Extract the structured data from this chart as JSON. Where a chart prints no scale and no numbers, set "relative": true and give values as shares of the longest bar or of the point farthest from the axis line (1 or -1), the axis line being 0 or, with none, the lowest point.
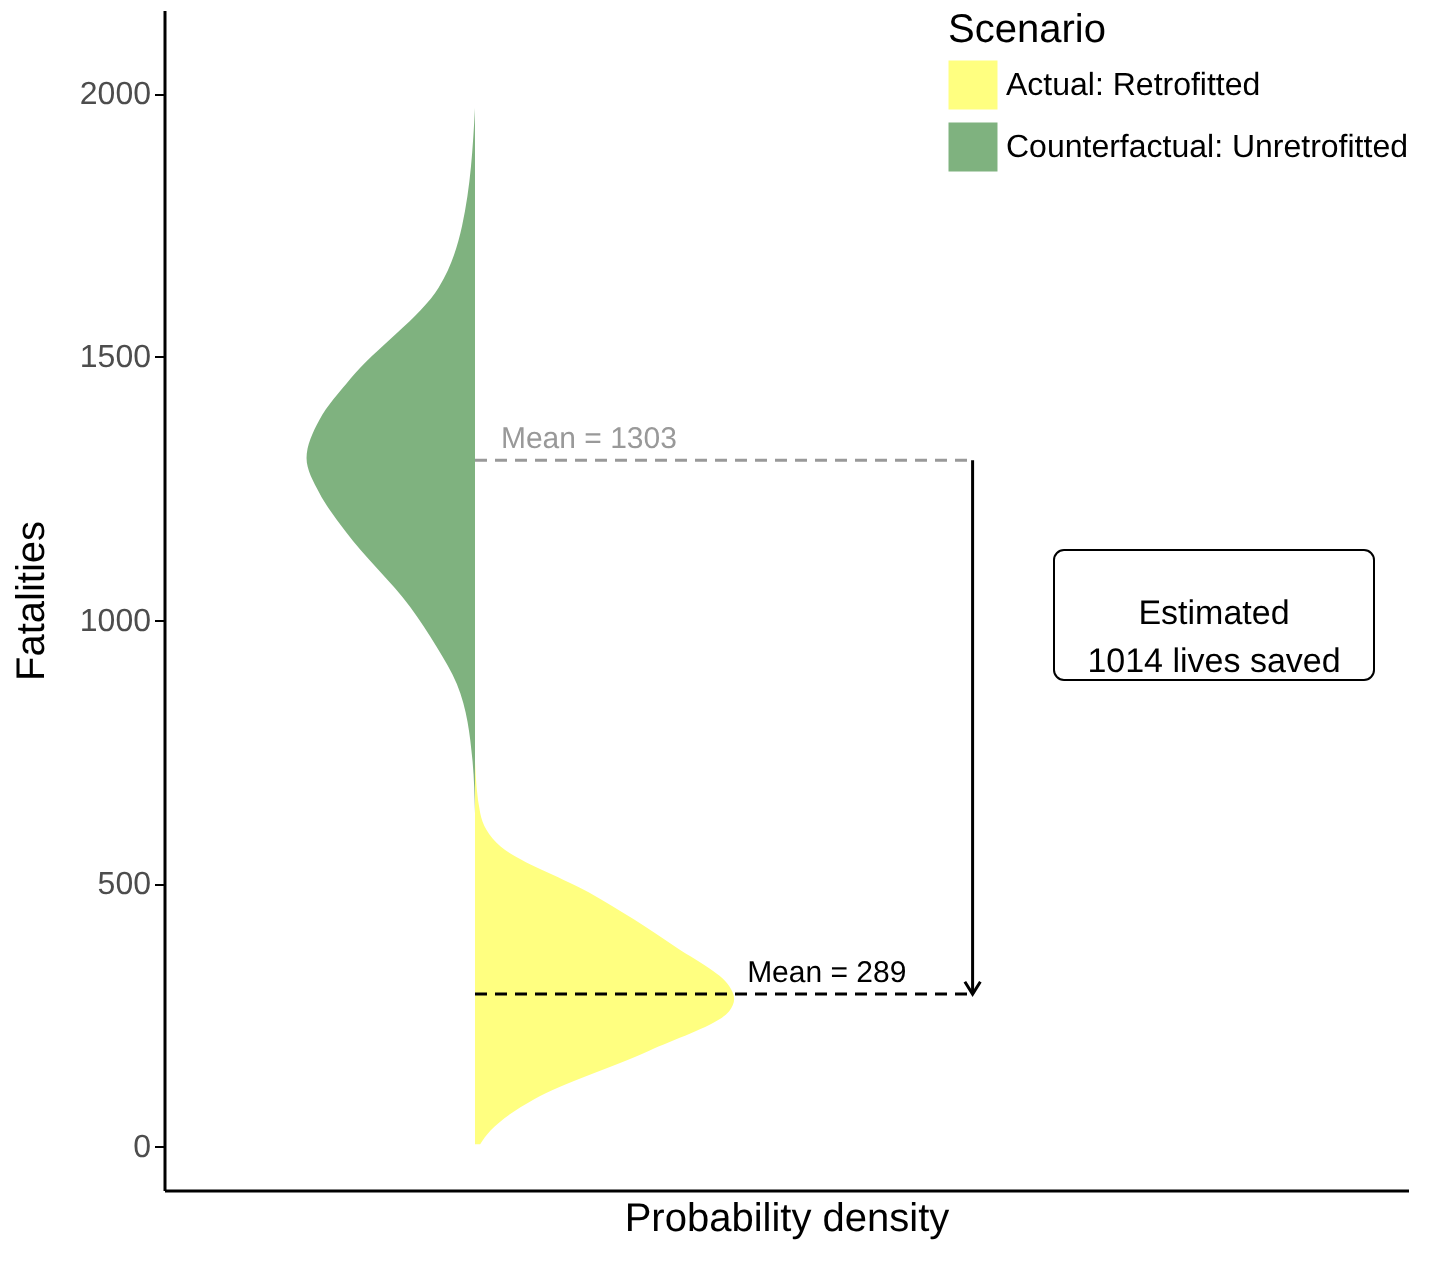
{
  "chart_data": {
    "type": "area",
    "orientation": "horizontal",
    "relative": true,
    "xlabel": "Probability density",
    "ylabel": "Fatalities",
    "legend_title": "Scenario",
    "legend": "top right",
    "grid": false,
    "tick_labels": "y",
    "ylim": [
      -83,
      2158
    ],
    "yticks": [
      0,
      500,
      1000,
      1500,
      2000
    ],
    "series": [
      {
        "name": "Actual: Retrofitted",
        "color": "#ffff80",
        "x": [
          4,
          30,
          90,
          181,
          256,
          280,
          305,
          380,
          482,
          569,
          633,
          731
        ],
        "values": [
          0.02,
          0.06,
          0.23,
          0.67,
          0.98,
          1,
          0.98,
          0.77,
          0.44,
          0.1,
          0.02,
          0
        ]
      },
      {
        "name": "Counterfactual: Unretrofitted",
        "color": "#7fb27f",
        "x": [
          633,
          734,
          878,
          950,
          1024,
          1168,
          1240,
          1307,
          1380,
          1458,
          1631,
          1748,
          1972
        ],
        "values": [
          0,
          -0.01,
          -0.07,
          -0.15,
          -0.25,
          -0.5,
          -0.6,
          -0.65,
          -0.6,
          -0.48,
          -0.14,
          -0.05,
          0
        ]
      }
    ],
    "ref_lines": [
      {
        "axis": "y",
        "value": 1303,
        "label": "Mean = 1303",
        "color": "#999999",
        "line_style": "dashed"
      },
      {
        "axis": "y",
        "value": 289,
        "label": "Mean = 289",
        "color": "#000000",
        "line_style": "dashed"
      }
    ],
    "annotations": [
      "Estimated\n1014 lives saved"
    ]
  }
}
